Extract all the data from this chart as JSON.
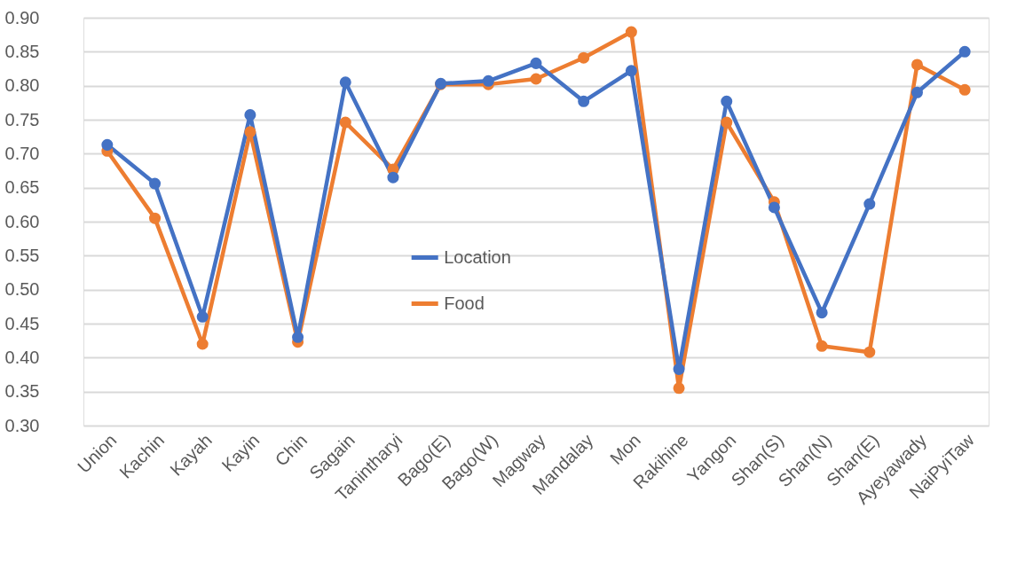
{
  "chart_data": {
    "type": "line",
    "categories": [
      "Union",
      "Kachin",
      "Kayah",
      "Kayin",
      "Chin",
      "Sagain",
      "Tanintharyi",
      "Bago(E)",
      "Bago(W)",
      "Magway",
      "Mandalay",
      "Mon",
      "Rakihine",
      "Yangon",
      "Shan(S)",
      "Shan(N)",
      "Shan(E)",
      "Ayeyawady",
      "NaiPyiTaw"
    ],
    "series": [
      {
        "name": "Location",
        "color": "#4472c4",
        "values": [
          0.713,
          0.656,
          0.46,
          0.757,
          0.43,
          0.805,
          0.665,
          0.803,
          0.807,
          0.833,
          0.777,
          0.822,
          0.383,
          0.777,
          0.621,
          0.466,
          0.626,
          0.79,
          0.85
        ]
      },
      {
        "name": "Food",
        "color": "#ed7d31",
        "values": [
          0.704,
          0.605,
          0.42,
          0.732,
          0.423,
          0.746,
          0.677,
          0.802,
          0.802,
          0.81,
          0.841,
          0.879,
          0.355,
          0.746,
          0.629,
          0.417,
          0.408,
          0.831,
          0.794
        ]
      }
    ],
    "ylim": [
      0.3,
      0.9
    ],
    "yticks": [
      {
        "value": 0.3,
        "label": "0.30"
      },
      {
        "value": 0.35,
        "label": "0.35"
      },
      {
        "value": 0.4,
        "label": "0.40"
      },
      {
        "value": 0.45,
        "label": "0.45"
      },
      {
        "value": 0.5,
        "label": "0.50"
      },
      {
        "value": 0.55,
        "label": "0.55"
      },
      {
        "value": 0.6,
        "label": "0.60"
      },
      {
        "value": 0.65,
        "label": "0.65"
      },
      {
        "value": 0.7,
        "label": "0.70"
      },
      {
        "value": 0.75,
        "label": "0.75"
      },
      {
        "value": 0.8,
        "label": "0.80"
      },
      {
        "value": 0.85,
        "label": "0.85"
      },
      {
        "value": 0.9,
        "label": "0.90"
      }
    ],
    "grid": "y",
    "legend": "center",
    "marker": "circle",
    "line_style": "solid"
  }
}
